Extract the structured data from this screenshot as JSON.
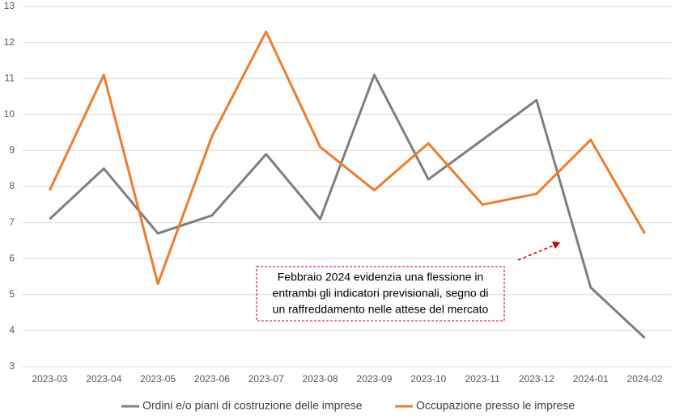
{
  "chart_data": {
    "type": "line",
    "categories": [
      "2023-03",
      "2023-04",
      "2023-05",
      "2023-06",
      "2023-07",
      "2023-08",
      "2023-09",
      "2023-10",
      "2023-11",
      "2023-12",
      "2024-01",
      "2024-02"
    ],
    "series": [
      {
        "name": "Ordini e/o piani di costruzione delle imprese",
        "color": "#7f7f7f",
        "values": [
          7.1,
          8.5,
          6.7,
          7.2,
          8.9,
          7.1,
          11.1,
          8.2,
          9.3,
          10.4,
          5.2,
          3.8
        ]
      },
      {
        "name": "Occupazione presso le imprese",
        "color": "#ed7d31",
        "values": [
          7.9,
          11.1,
          5.3,
          9.4,
          12.3,
          9.1,
          7.9,
          9.2,
          7.5,
          7.8,
          9.3,
          6.7
        ]
      }
    ],
    "ylim": [
      3,
      13
    ],
    "yticks": [
      3,
      4,
      5,
      6,
      7,
      8,
      9,
      10,
      11,
      12,
      13
    ],
    "grid": true,
    "annotation": [
      "Febbraio 2024 evidenzia una flessione in",
      "entrambi gli indicatori previsionali, segno di",
      "un raffreddamento nelle attese del mercato"
    ],
    "annotation_color": "#c00000",
    "legend": "bottom"
  }
}
